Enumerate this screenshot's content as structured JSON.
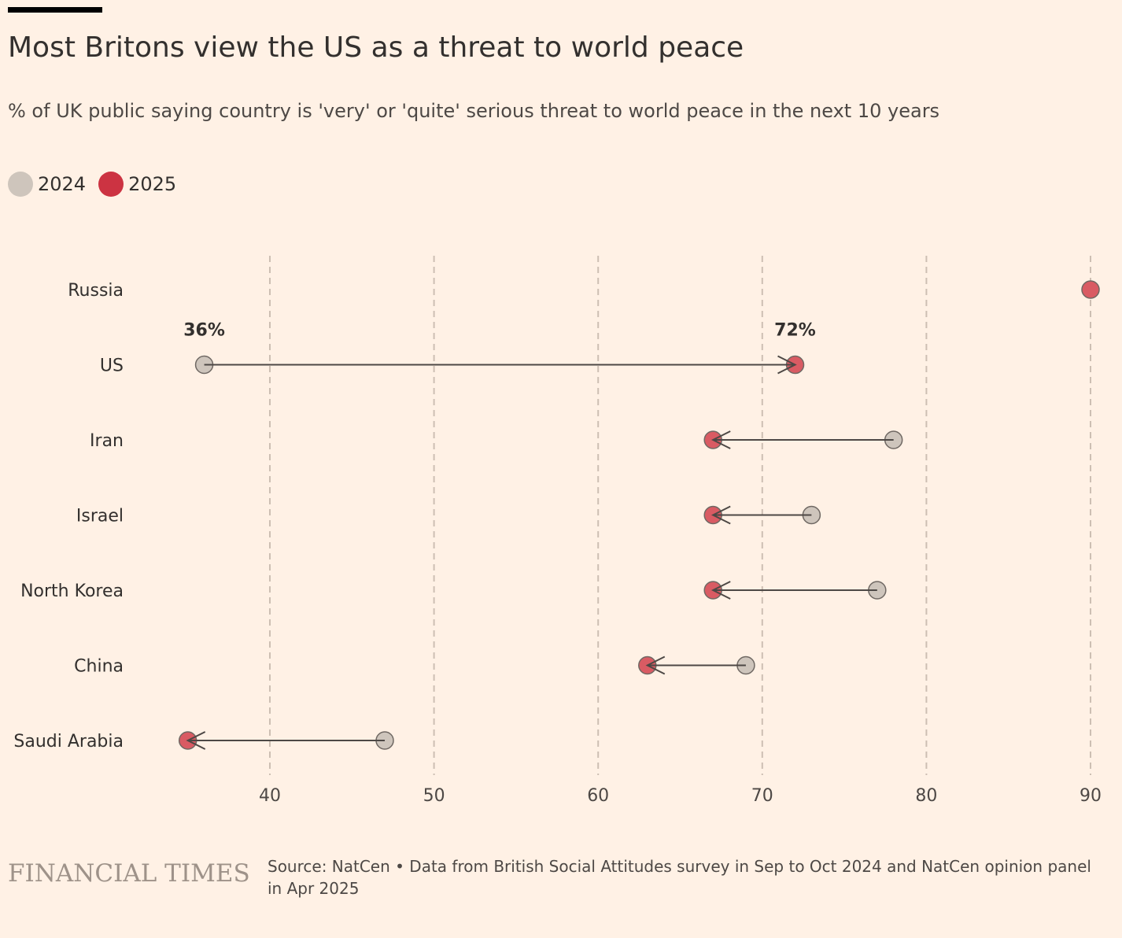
{
  "title": "Most Britons view the US as a threat to world peace",
  "subtitle": "% of UK public saying country is 'very' or 'quite' serious threat to world peace in the next 10 years",
  "legend": [
    {
      "label": "2024",
      "color": "#cec5bc"
    },
    {
      "label": "2025",
      "color": "#cc3342"
    }
  ],
  "footer": {
    "logo": "FINANCIAL TIMES",
    "source": "Source: NatCen • Data from British Social Attitudes survey in Sep to Oct 2024 and NatCen opinion panel in Apr 2025"
  },
  "chart_data": {
    "type": "dot-arrow",
    "title": "Most Britons view the US as a threat to world peace",
    "xlim": [
      30,
      90
    ],
    "xticks": [
      40,
      50,
      60,
      70,
      80,
      90
    ],
    "grid": "vertical dashed",
    "categories": [
      "Russia",
      "US",
      "Iran",
      "Israel",
      "North Korea",
      "China",
      "Saudi Arabia"
    ],
    "series": [
      {
        "name": "2024",
        "values": [
          90,
          36,
          78,
          73,
          77,
          69,
          47
        ]
      },
      {
        "name": "2025",
        "values": [
          90,
          72,
          67,
          67,
          67,
          63,
          35
        ]
      }
    ],
    "annotations": [
      {
        "category": "US",
        "value": 36,
        "text": "36%"
      },
      {
        "category": "US",
        "value": 72,
        "text": "72%"
      }
    ],
    "colors": {
      "y2024": "#cec5bc",
      "y2025": "#d95b63",
      "line": "#4d4845",
      "grid": "#cdbfb3"
    }
  }
}
